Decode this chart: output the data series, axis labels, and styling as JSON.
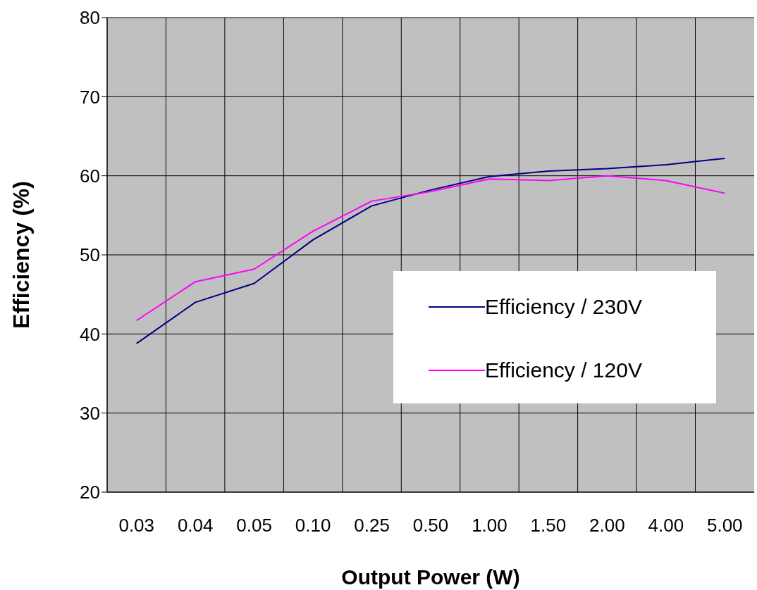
{
  "chart_data": {
    "type": "line",
    "xlabel": "Output Power (W)",
    "ylabel": "Efficiency (%)",
    "categories": [
      "0.03",
      "0.04",
      "0.05",
      "0.10",
      "0.25",
      "0.50",
      "1.00",
      "1.50",
      "2.00",
      "4.00",
      "5.00"
    ],
    "series": [
      {
        "name": "Efficiency / 230V",
        "color": "#000080",
        "values": [
          38.8,
          44.0,
          46.4,
          51.9,
          56.2,
          58.2,
          59.9,
          60.6,
          60.9,
          61.4,
          62.2
        ]
      },
      {
        "name": "Efficiency / 120V",
        "color": "#ff00ff",
        "values": [
          41.7,
          46.6,
          48.2,
          53.0,
          56.8,
          58.0,
          59.6,
          59.4,
          60.0,
          59.4,
          57.8
        ]
      }
    ],
    "ylim": [
      20,
      80
    ],
    "yticks": [
      20,
      30,
      40,
      50,
      60,
      70,
      80
    ],
    "grid": true,
    "legend": "right",
    "marker": "none",
    "line_style": "solid"
  }
}
